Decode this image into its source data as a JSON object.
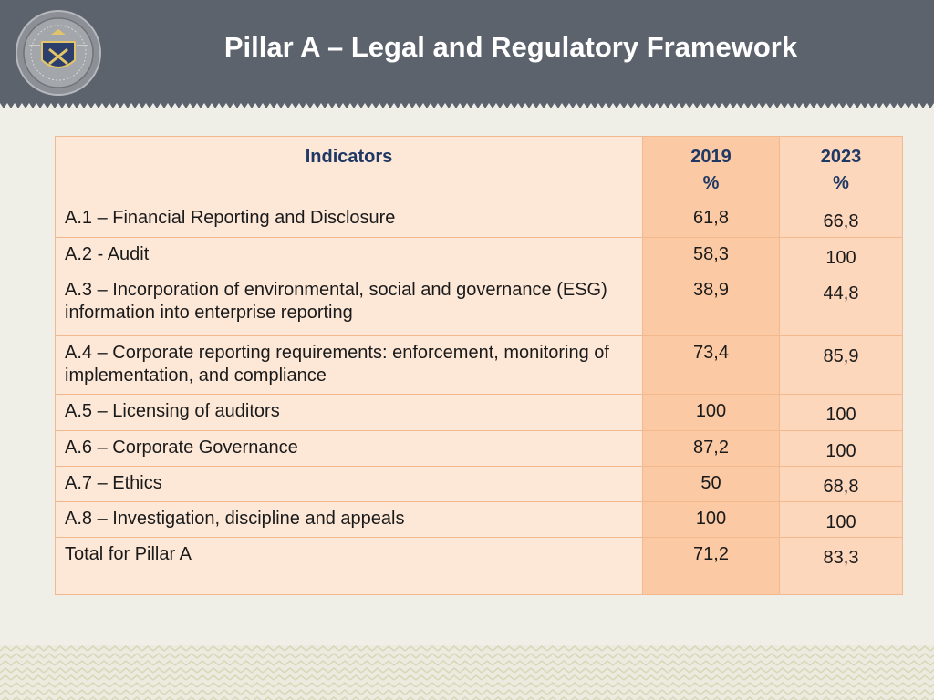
{
  "header": {
    "title": "Pillar A – Legal and Regulatory Framework",
    "logo_icon": "emblem-seal-icon",
    "background_color": "#5d636d"
  },
  "table": {
    "columns": {
      "indicators": "Indicators",
      "y2019": "2019",
      "y2019_unit": "%",
      "y2023": "2023",
      "y2023_unit": "%"
    },
    "rows": [
      {
        "indicator": "A.1 – Financial Reporting and Disclosure",
        "v2019": "61,8",
        "v2023": "66,8"
      },
      {
        "indicator": "A.2 - Audit",
        "v2019": "58,3",
        "v2023": "100"
      },
      {
        "indicator": "A.3 – Incorporation of environmental, social and governance (ESG) information into enterprise reporting",
        "v2019": "38,9",
        "v2023": "44,8"
      },
      {
        "indicator": "A.4 – Corporate reporting requirements: enforcement, monitoring of implementation, and compliance",
        "v2019": "73,4",
        "v2023": "85,9"
      },
      {
        "indicator": "A.5 – Licensing of auditors",
        "v2019": "100",
        "v2023": "100"
      },
      {
        "indicator": "A.6 – Corporate Governance",
        "v2019": "87,2",
        "v2023": "100"
      },
      {
        "indicator": "A.7 – Ethics",
        "v2019": "50",
        "v2023": "68,8"
      },
      {
        "indicator": "A.8 – Investigation, discipline and appeals",
        "v2019": "100",
        "v2023": "100"
      },
      {
        "indicator": "Total for Pillar A",
        "v2019": "71,2",
        "v2023": "83,3"
      }
    ]
  }
}
